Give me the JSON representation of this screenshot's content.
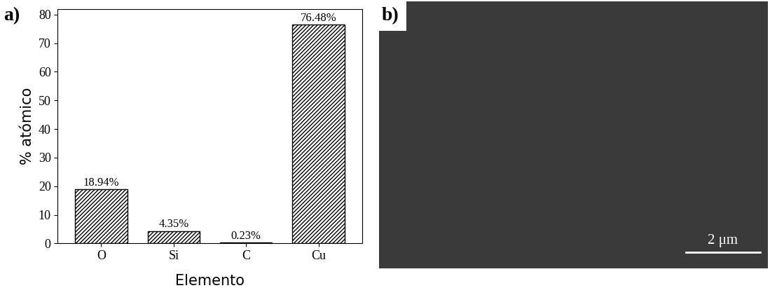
{
  "chart_data": {
    "type": "bar",
    "panel_label": "a)",
    "categories": [
      "O",
      "Si",
      "C",
      "Cu"
    ],
    "values": [
      18.94,
      4.35,
      0.23,
      76.48
    ],
    "value_labels": [
      "18.94%",
      "4.35%",
      "0.23%",
      "76.48%"
    ],
    "data_labels": true,
    "color": "#ffffff",
    "x_label": "Elemento",
    "y_label": "% atómico",
    "ylim": [
      0,
      82
    ],
    "yticks": [
      0,
      10,
      20,
      30,
      40,
      50,
      60,
      70,
      80
    ]
  },
  "panel_b": {
    "label": "b)",
    "scale_bar": "2 μm"
  }
}
